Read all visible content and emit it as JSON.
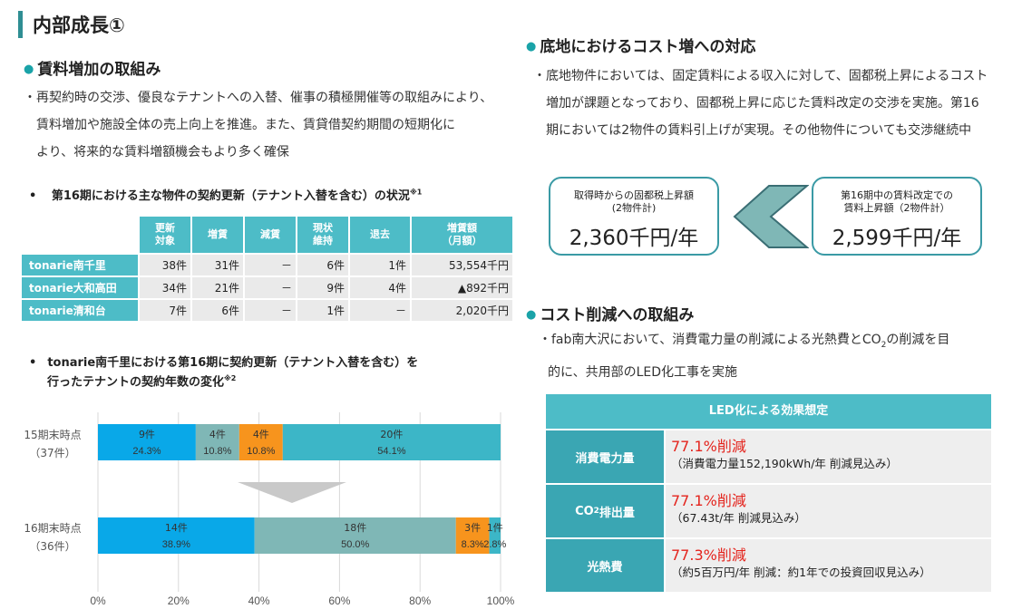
{
  "header": {
    "title": "内部成長①"
  },
  "left": {
    "section1": {
      "heading": "賃料増加の取組み",
      "lines": [
        "・再契約時の交渉、優良なテナントへの入替、催事の積極開催等の取組みにより、",
        "賃料増加や施設全体の売上向上を推進。また、賃貸借契約期間の短期化に",
        "より、将来的な賃料増額機会もより多く確保"
      ]
    },
    "table_section": {
      "bullet": "•",
      "heading": "第16期における主な物件の契約更新（テナント入替を含む）の状況",
      "note": "※1",
      "headers": [
        {
          "l1": "更新",
          "l2": "対象"
        },
        {
          "l1": "増賃",
          "l2": ""
        },
        {
          "l1": "減賃",
          "l2": ""
        },
        {
          "l1": "現状",
          "l2": "維持"
        },
        {
          "l1": "退去",
          "l2": ""
        },
        {
          "l1": "増賃額",
          "l2": "（月額）"
        }
      ],
      "rows": [
        {
          "name": "tonarie南千里",
          "cells": [
            "38件",
            "31件",
            "－",
            "6件",
            "1件",
            "53,554千円"
          ]
        },
        {
          "name": "tonarie大和高田",
          "cells": [
            "34件",
            "21件",
            "－",
            "9件",
            "4件",
            "▲892千円"
          ]
        },
        {
          "name": "tonarie清和台",
          "cells": [
            "7件",
            "6件",
            "－",
            "1件",
            "－",
            "2,020千円"
          ]
        }
      ]
    },
    "chart_section": {
      "bullet": "•",
      "heading_line1": "tonarie南千里における第16期に契約更新（テナント入替を含む）を",
      "heading_line2": "行ったテナントの契約年数の変化",
      "note": "※2"
    }
  },
  "right": {
    "section1": {
      "heading": "底地におけるコスト増への対応",
      "lines": [
        "・底地物件においては、固定賃料による収入に対して、固都税上昇によるコスト",
        "増加が課題となっており、固都税上昇に応じた賃料改定の交渉を実施。第16",
        "期においては2物件の賃料引上げが実現。その他物件についても交渉継続中"
      ],
      "box_left": {
        "l1": "取得時からの固都税上昇額",
        "l2": "(2物件計)",
        "value": "2,360千円/年"
      },
      "box_right": {
        "l1": "第16期中の賃料改定での",
        "l2": "賃料上昇額（2物件計）",
        "value": "2,599千円/年"
      }
    },
    "section2": {
      "heading": "コスト削減への取組み",
      "line1_pre": "・fab南大沢において、消費電力量の削減による光熱費とCO",
      "line1_sub": "2",
      "line1_post": "の削減を目",
      "line2": "的に、共用部のLED化工事を実施"
    },
    "led": {
      "title": "LED化による効果想定",
      "rows": [
        {
          "label_pre": "消費電力量",
          "label_sub": "",
          "label_post": "",
          "main": "77.1%削減",
          "sub": "（消費電力量152,190kWh/年 削減見込み）"
        },
        {
          "label_pre": "CO",
          "label_sub": "2",
          "label_post": "排出量",
          "main": "77.1%削減",
          "sub": "（67.43t/年 削減見込み）"
        },
        {
          "label_pre": "光熱費",
          "label_sub": "",
          "label_post": "",
          "main": "77.3%削減",
          "sub": "（約5百万円/年 削減：約1年での投資回収見込み）"
        }
      ]
    }
  },
  "chart_data": {
    "type": "bar",
    "orientation": "horizontal",
    "stacked": true,
    "categories": [
      {
        "name": "15期末時点",
        "total": "（37件）"
      },
      {
        "name": "16期末時点",
        "total": "（36件）"
      }
    ],
    "series": [
      {
        "color": "#09a8e8",
        "counts": [
          "9件",
          "14件"
        ],
        "values": [
          24.3,
          38.9
        ],
        "labels": [
          "24.3%",
          "38.9%"
        ]
      },
      {
        "color": "#7fb7b6",
        "counts": [
          "4件",
          "18件"
        ],
        "values": [
          10.8,
          50.0
        ],
        "labels": [
          "10.8%",
          "50.0%"
        ]
      },
      {
        "color": "#f7941d",
        "counts": [
          "4件",
          "3件"
        ],
        "values": [
          10.8,
          8.3
        ],
        "labels": [
          "10.8%",
          "8.3%"
        ]
      },
      {
        "color": "#3cb6c7",
        "counts": [
          "20件",
          "1件"
        ],
        "values": [
          54.1,
          2.8
        ],
        "labels": [
          "54.1%",
          "2.8%"
        ]
      }
    ],
    "xlim": [
      0,
      100
    ],
    "xticks": [
      "0%",
      "20%",
      "40%",
      "60%",
      "80%",
      "100%"
    ],
    "grid": true
  }
}
